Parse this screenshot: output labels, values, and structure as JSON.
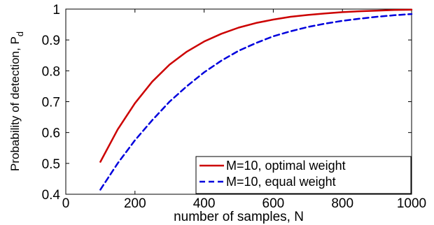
{
  "chart_data": {
    "type": "line",
    "xlabel": "number of samples, N",
    "ylabel": "Probability of detection, P",
    "ylabel_subscript": "d",
    "xlim": [
      0,
      1000
    ],
    "ylim": [
      0.4,
      1.0
    ],
    "xticks": [
      0,
      200,
      400,
      600,
      800,
      1000
    ],
    "yticks": [
      0.4,
      0.5,
      0.6,
      0.7,
      0.8,
      0.9,
      1.0
    ],
    "xtick_labels": [
      "0",
      "200",
      "400",
      "600",
      "800",
      "1000"
    ],
    "ytick_labels": [
      "0.4",
      "0.5",
      "0.6",
      "0.7",
      "0.8",
      "0.9",
      "1"
    ],
    "grid": false,
    "legend_position": "lower-right",
    "x": [
      100,
      150,
      200,
      250,
      300,
      350,
      400,
      450,
      500,
      550,
      600,
      650,
      700,
      750,
      800,
      850,
      900,
      950,
      1000
    ],
    "series": [
      {
        "name": "M=10, optimal weight",
        "color": "#cc0000",
        "line_style": "solid",
        "values": [
          0.505,
          0.61,
          0.695,
          0.765,
          0.82,
          0.862,
          0.895,
          0.92,
          0.94,
          0.955,
          0.966,
          0.975,
          0.981,
          0.986,
          0.99,
          0.993,
          0.995,
          0.997,
          0.998
        ]
      },
      {
        "name": "M=10, equal weight",
        "color": "#0000dd",
        "line_style": "dashed",
        "values": [
          0.415,
          0.5,
          0.575,
          0.64,
          0.7,
          0.75,
          0.795,
          0.833,
          0.865,
          0.89,
          0.912,
          0.928,
          0.942,
          0.953,
          0.962,
          0.969,
          0.975,
          0.98,
          0.984
        ]
      }
    ]
  }
}
